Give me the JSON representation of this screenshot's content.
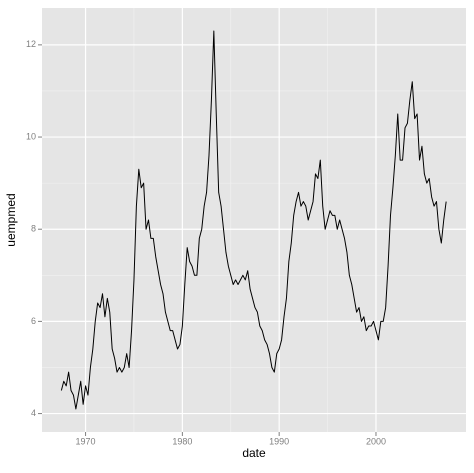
{
  "chart_data": {
    "type": "line",
    "x_label": "date",
    "y_label": "uempmed",
    "x": [
      1967.5,
      1967.75,
      1968,
      1968.25,
      1968.5,
      1968.75,
      1969,
      1969.25,
      1969.5,
      1969.75,
      1970,
      1970.25,
      1970.5,
      1970.75,
      1971,
      1971.25,
      1971.5,
      1971.75,
      1972,
      1972.25,
      1972.5,
      1972.75,
      1973,
      1973.25,
      1973.5,
      1973.75,
      1974,
      1974.25,
      1974.5,
      1974.75,
      1975,
      1975.25,
      1975.5,
      1975.75,
      1976,
      1976.25,
      1976.5,
      1976.75,
      1977,
      1977.25,
      1977.5,
      1977.75,
      1978,
      1978.25,
      1978.5,
      1978.75,
      1979,
      1979.25,
      1979.5,
      1979.75,
      1980,
      1980.25,
      1980.5,
      1980.75,
      1981,
      1981.25,
      1981.5,
      1981.75,
      1982,
      1982.25,
      1982.5,
      1982.75,
      1983,
      1983.25,
      1983.5,
      1983.75,
      1984,
      1984.25,
      1984.5,
      1984.75,
      1985,
      1985.25,
      1985.5,
      1985.75,
      1986,
      1986.25,
      1986.5,
      1986.75,
      1987,
      1987.25,
      1987.5,
      1987.75,
      1988,
      1988.25,
      1988.5,
      1988.75,
      1989,
      1989.25,
      1989.5,
      1989.75,
      1990,
      1990.25,
      1990.5,
      1990.75,
      1991,
      1991.25,
      1991.5,
      1991.75,
      1992,
      1992.25,
      1992.5,
      1992.75,
      1993,
      1993.25,
      1993.5,
      1993.75,
      1994,
      1994.25,
      1994.5,
      1994.75,
      1995,
      1995.25,
      1995.5,
      1995.75,
      1996,
      1996.25,
      1996.5,
      1996.75,
      1997,
      1997.25,
      1997.5,
      1997.75,
      1998,
      1998.25,
      1998.5,
      1998.75,
      1999,
      1999.25,
      1999.5,
      1999.75,
      2000,
      2000.25,
      2000.5,
      2000.75,
      2001,
      2001.25,
      2001.5,
      2001.75,
      2002,
      2002.25,
      2002.5,
      2002.75,
      2003,
      2003.25,
      2003.5,
      2003.75,
      2004,
      2004.25,
      2004.5,
      2004.75,
      2005,
      2005.25,
      2005.5,
      2005.75,
      2006,
      2006.25,
      2006.5,
      2006.75,
      2007,
      2007.25
    ],
    "series": [
      {
        "name": "uempmed",
        "color": "#000000",
        "values": [
          4.5,
          4.7,
          4.6,
          4.9,
          4.5,
          4.4,
          4.1,
          4.4,
          4.7,
          4.2,
          4.6,
          4.4,
          5.0,
          5.4,
          6.0,
          6.4,
          6.3,
          6.6,
          6.1,
          6.5,
          6.2,
          5.4,
          5.2,
          4.9,
          5.0,
          4.9,
          5.0,
          5.3,
          5.0,
          5.8,
          6.9,
          8.5,
          9.3,
          8.9,
          9.0,
          8.0,
          8.2,
          7.8,
          7.8,
          7.4,
          7.1,
          6.8,
          6.6,
          6.2,
          6.0,
          5.8,
          5.8,
          5.6,
          5.4,
          5.5,
          5.9,
          6.8,
          7.6,
          7.3,
          7.2,
          7.0,
          7.0,
          7.8,
          8.0,
          8.5,
          8.8,
          9.6,
          10.8,
          12.3,
          10.5,
          8.8,
          8.5,
          8.0,
          7.5,
          7.2,
          7.0,
          6.8,
          6.9,
          6.8,
          6.9,
          7.0,
          6.9,
          7.1,
          6.7,
          6.5,
          6.3,
          6.2,
          5.9,
          5.8,
          5.6,
          5.5,
          5.3,
          5.0,
          4.9,
          5.3,
          5.4,
          5.6,
          6.1,
          6.5,
          7.3,
          7.7,
          8.3,
          8.6,
          8.8,
          8.5,
          8.6,
          8.5,
          8.2,
          8.4,
          8.6,
          9.2,
          9.1,
          9.5,
          8.5,
          8.0,
          8.2,
          8.4,
          8.3,
          8.3,
          8.0,
          8.2,
          8.0,
          7.8,
          7.5,
          7.0,
          6.8,
          6.5,
          6.2,
          6.3,
          6.0,
          6.1,
          5.8,
          5.9,
          5.9,
          6.0,
          5.8,
          5.6,
          6.0,
          6.0,
          6.3,
          7.2,
          8.3,
          8.9,
          9.6,
          10.5,
          9.5,
          9.5,
          10.2,
          10.3,
          10.8,
          11.2,
          10.4,
          10.5,
          9.5,
          9.8,
          9.2,
          9.0,
          9.1,
          8.7,
          8.5,
          8.6,
          8.0,
          7.7,
          8.2,
          8.6
        ]
      }
    ],
    "xlim": [
      1965.5,
      2009.3
    ],
    "xticks": [
      1970,
      1980,
      1990,
      2000
    ],
    "ylim": [
      3.6,
      12.8
    ],
    "yticks": [
      4,
      6,
      8,
      10,
      12
    ],
    "grid": true
  }
}
